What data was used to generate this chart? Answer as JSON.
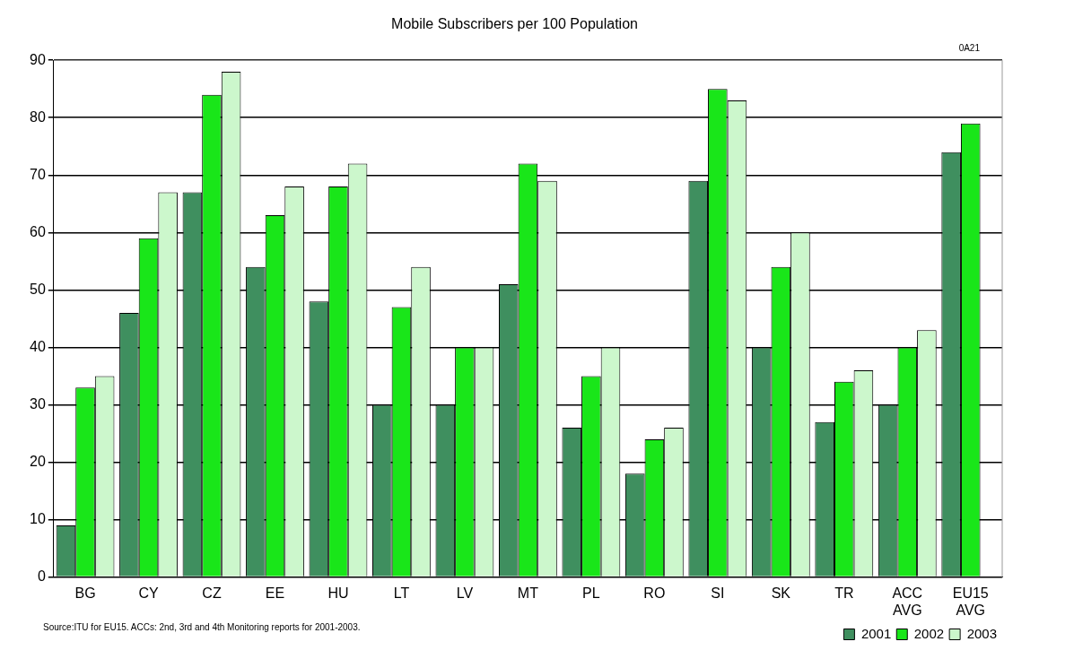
{
  "chart_data": {
    "type": "bar",
    "title": "Mobile Subscribers per 100 Population",
    "categories": [
      "BG",
      "CY",
      "CZ",
      "EE",
      "HU",
      "LT",
      "LV",
      "MT",
      "PL",
      "RO",
      "SI",
      "SK",
      "TR",
      "ACC AVG",
      "EU15 AVG"
    ],
    "series": [
      {
        "name": "2001",
        "color": "#3f8f5f",
        "values": [
          9,
          46,
          67,
          54,
          48,
          30,
          30,
          51,
          26,
          18,
          69,
          40,
          27,
          30,
          74
        ]
      },
      {
        "name": "2002",
        "color": "#19e619",
        "values": [
          33,
          59,
          84,
          63,
          68,
          47,
          40,
          72,
          35,
          24,
          85,
          54,
          34,
          40,
          79
        ]
      },
      {
        "name": "2003",
        "color": "#ccf7cc",
        "values": [
          35,
          67,
          88,
          68,
          72,
          54,
          40,
          69,
          40,
          26,
          83,
          60,
          36,
          43,
          null
        ]
      }
    ],
    "ylim": [
      0,
      90
    ],
    "yticks": [
      0,
      10,
      20,
      30,
      40,
      50,
      60,
      70,
      80,
      90
    ],
    "grid": "y",
    "legend": "bottom right",
    "annotations": [
      "0A21",
      "Source:ITU for EU15. ACCs: 2nd, 3rd and 4th Monitoring reports for 2001-2003."
    ]
  }
}
